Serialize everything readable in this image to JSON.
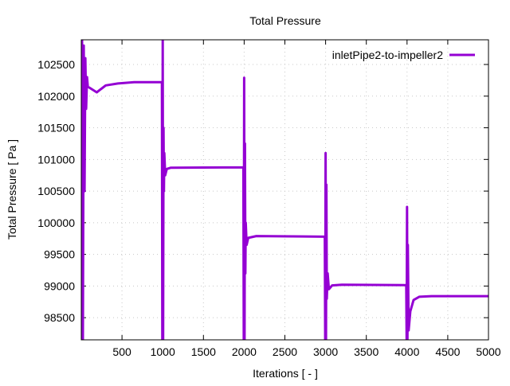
{
  "chart_data": {
    "type": "line",
    "title": "Total Pressure",
    "xlabel": "Iterations [ - ]",
    "ylabel": "Total Pressure [ Pa ]",
    "xlim": [
      0,
      5000
    ],
    "ylim": [
      98150,
      102890
    ],
    "xticks": [
      500,
      1000,
      1500,
      2000,
      2500,
      3000,
      3500,
      4000,
      4500,
      5000
    ],
    "yticks": [
      98500,
      99000,
      99500,
      100000,
      100500,
      101000,
      101500,
      102000,
      102500
    ],
    "grid": true,
    "legend_position": "top-right",
    "series": [
      {
        "name": "inletPipe2-to-impeller2",
        "color": "#9400d3",
        "points": [
          [
            0,
            98150
          ],
          [
            10,
            102890
          ],
          [
            20,
            98150
          ],
          [
            30,
            102800
          ],
          [
            40,
            100500
          ],
          [
            50,
            102600
          ],
          [
            60,
            101800
          ],
          [
            70,
            102300
          ],
          [
            80,
            102150
          ],
          [
            190,
            102060
          ],
          [
            300,
            102170
          ],
          [
            450,
            102200
          ],
          [
            650,
            102220
          ],
          [
            990,
            102220
          ],
          [
            995,
            98150
          ],
          [
            1000,
            102890
          ],
          [
            1005,
            98150
          ],
          [
            1010,
            101500
          ],
          [
            1015,
            100500
          ],
          [
            1020,
            101100
          ],
          [
            1030,
            100750
          ],
          [
            1050,
            100850
          ],
          [
            1100,
            100870
          ],
          [
            1990,
            100875
          ],
          [
            1995,
            98150
          ],
          [
            2000,
            102290
          ],
          [
            2005,
            98150
          ],
          [
            2010,
            101250
          ],
          [
            2015,
            99200
          ],
          [
            2020,
            100000
          ],
          [
            2030,
            99650
          ],
          [
            2050,
            99760
          ],
          [
            2150,
            99790
          ],
          [
            2990,
            99780
          ],
          [
            2995,
            98150
          ],
          [
            3000,
            101100
          ],
          [
            3005,
            98150
          ],
          [
            3010,
            100600
          ],
          [
            3015,
            98800
          ],
          [
            3025,
            99200
          ],
          [
            3040,
            98950
          ],
          [
            3080,
            99010
          ],
          [
            3200,
            99020
          ],
          [
            3990,
            99015
          ],
          [
            3995,
            98150
          ],
          [
            4000,
            100250
          ],
          [
            4005,
            98150
          ],
          [
            4010,
            99650
          ],
          [
            4020,
            98300
          ],
          [
            4040,
            98600
          ],
          [
            4080,
            98780
          ],
          [
            4150,
            98830
          ],
          [
            4300,
            98840
          ],
          [
            5000,
            98840
          ]
        ]
      }
    ]
  }
}
